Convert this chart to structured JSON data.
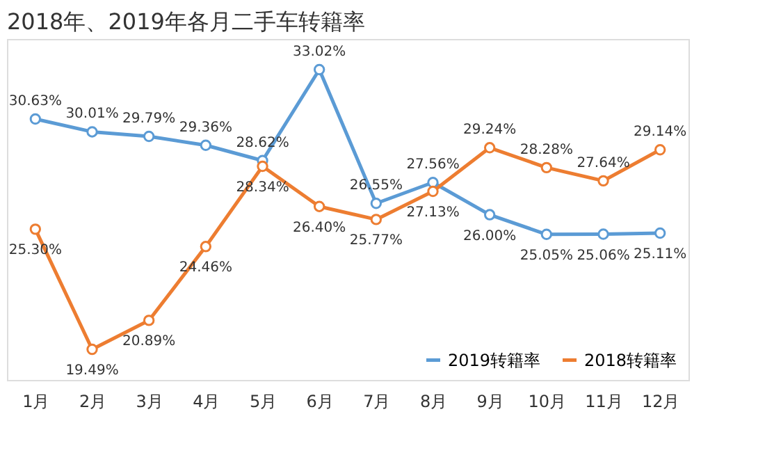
{
  "chart_data": {
    "type": "line",
    "title": "2018年、2019年各月二手车转籍率",
    "categories": [
      "1月",
      "2月",
      "3月",
      "4月",
      "5月",
      "6月",
      "7月",
      "8月",
      "9月",
      "10月",
      "11月",
      "12月"
    ],
    "series": [
      {
        "name": "2019转籍率",
        "color": "#5b9bd5",
        "values": [
          30.63,
          30.01,
          29.79,
          29.36,
          28.62,
          33.02,
          26.55,
          27.56,
          26.0,
          25.05,
          25.06,
          25.11
        ],
        "value_labels": [
          "30.63%",
          "30.01%",
          "29.79%",
          "29.36%",
          "28.62%",
          "33.02%",
          "26.55%",
          "27.56%",
          "26.00%",
          "25.05%",
          "25.06%",
          "25.11%"
        ]
      },
      {
        "name": "2018转籍率",
        "color": "#ed7d31",
        "values": [
          25.3,
          19.49,
          20.89,
          24.46,
          28.34,
          26.4,
          25.77,
          27.13,
          29.24,
          28.28,
          27.64,
          29.14
        ],
        "value_labels": [
          "25.30%",
          "19.49%",
          "20.89%",
          "24.46%",
          "28.34%",
          "26.40%",
          "25.77%",
          "27.13%",
          "29.24%",
          "28.28%",
          "27.64%",
          "29.14%"
        ]
      }
    ],
    "marker": "circle",
    "legend": "bottom right",
    "grid": false,
    "tick_labels": "x"
  }
}
